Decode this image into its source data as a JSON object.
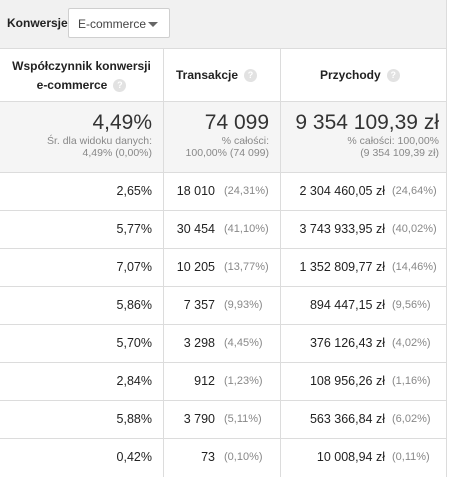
{
  "toolbar": {
    "label": "Konwersje",
    "dropdown_value": "E-commerce"
  },
  "headers": {
    "col1_line1": "Współczynnik konwersji",
    "col1_line2": "e-commerce",
    "col2": "Transakcje",
    "col3": "Przychody",
    "help_glyph": "?"
  },
  "summary": {
    "rate": "4,49%",
    "rate_sub1": "Śr. dla widoku danych:",
    "rate_sub2": "4,49% (0,00%)",
    "transactions": "74 099",
    "trans_sub1": "% całości:",
    "trans_sub2": "100,00% (74 099)",
    "revenue": "9 354 109,39 zł",
    "rev_sub1": "% całości: 100,00%",
    "rev_sub2": "(9 354 109,39 zł)"
  },
  "rows": [
    {
      "rate": "2,65%",
      "transactions": "18 010",
      "trans_pct": "(24,31%)",
      "revenue": "2 304 460,05 zł",
      "rev_pct": "(24,64%)"
    },
    {
      "rate": "5,77%",
      "transactions": "30 454",
      "trans_pct": "(41,10%)",
      "revenue": "3 743 933,95 zł",
      "rev_pct": "(40,02%)"
    },
    {
      "rate": "7,07%",
      "transactions": "10 205",
      "trans_pct": "(13,77%)",
      "revenue": "1 352 809,77 zł",
      "rev_pct": "(14,46%)"
    },
    {
      "rate": "5,86%",
      "transactions": "7 357",
      "trans_pct": "(9,93%)",
      "revenue": "894 447,15 zł",
      "rev_pct": "(9,56%)"
    },
    {
      "rate": "5,70%",
      "transactions": "3 298",
      "trans_pct": "(4,45%)",
      "revenue": "376 126,43 zł",
      "rev_pct": "(4,02%)"
    },
    {
      "rate": "2,84%",
      "transactions": "912",
      "trans_pct": "(1,23%)",
      "revenue": "108 956,26 zł",
      "rev_pct": "(1,16%)"
    },
    {
      "rate": "5,88%",
      "transactions": "3 790",
      "trans_pct": "(5,11%)",
      "revenue": "563 366,84 zł",
      "rev_pct": "(6,02%)"
    },
    {
      "rate": "0,42%",
      "transactions": "73",
      "trans_pct": "(0,10%)",
      "revenue": "10 008,94 zł",
      "rev_pct": "(0,11%)"
    }
  ]
}
